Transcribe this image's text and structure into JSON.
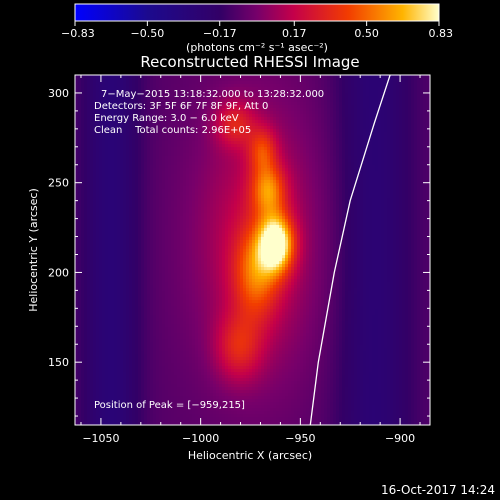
{
  "chart_data": {
    "type": "heatmap",
    "title": "Reconstructed RHESSI Image",
    "xlabel": "Heliocentric X (arcsec)",
    "ylabel": "Heliocentric Y (arcsec)",
    "xlim": [
      -1063,
      -885
    ],
    "ylim": [
      115,
      310
    ],
    "x_ticks": [
      -1050,
      -1000,
      -950,
      -900
    ],
    "y_ticks": [
      150,
      200,
      250,
      300
    ],
    "colorbar": {
      "unit_label": "(photons cm⁻² s⁻¹ asec⁻²)",
      "range": [
        -0.83,
        0.83
      ],
      "tick_values": [
        -0.83,
        -0.5,
        -0.17,
        0.17,
        0.5,
        0.83
      ],
      "tick_labels": [
        "−0.83",
        "−0.50",
        "−0.17",
        "0.17",
        "0.50",
        "0.83"
      ]
    },
    "annotations": [
      "7−May−2015 13:18:32.000 to 13:28:32.000",
      "Detectors: 3F 5F 6F 7F 8F 9F, Att 0",
      "Energy Range: 3.0 − 6.0 keV",
      "Clean    Total counts: 2.96E+05"
    ],
    "peak_label": "Position of Peak = [−959,215]",
    "peak_position": [
      -959,
      215
    ],
    "limb_curve": [
      [
        -945,
        115
      ],
      [
        -941,
        150
      ],
      [
        -933,
        200
      ],
      [
        -925,
        240
      ],
      [
        -913,
        283
      ],
      [
        -905,
        310
      ]
    ],
    "sources": [
      {
        "x": -962,
        "y": 216,
        "sx": 6,
        "sy": 11,
        "amp": 1.0
      },
      {
        "x": -966,
        "y": 246,
        "sx": 6,
        "sy": 10,
        "amp": 0.55
      },
      {
        "x": -969,
        "y": 268,
        "sx": 5,
        "sy": 9,
        "amp": 0.4
      },
      {
        "x": -972,
        "y": 200,
        "sx": 8,
        "sy": 18,
        "amp": 0.5
      },
      {
        "x": -983,
        "y": 283,
        "sx": 7,
        "sy": 9,
        "amp": 0.35
      },
      {
        "x": -981,
        "y": 158,
        "sx": 8,
        "sy": 13,
        "amp": 0.35
      },
      {
        "x": -972,
        "y": 218,
        "sx": 22,
        "sy": 55,
        "amp": 0.32
      }
    ],
    "background_bands": [
      {
        "x": -1045,
        "amp": -0.22,
        "sx": 10
      },
      {
        "x": -913,
        "amp": -0.2,
        "sx": 13
      }
    ],
    "background_level": -0.08
  },
  "footer": {
    "timestamp": "16-Oct-2017 14:24"
  },
  "colors": {
    "background": "#000000",
    "text": "#ffffff",
    "limb": "#ffffff"
  }
}
